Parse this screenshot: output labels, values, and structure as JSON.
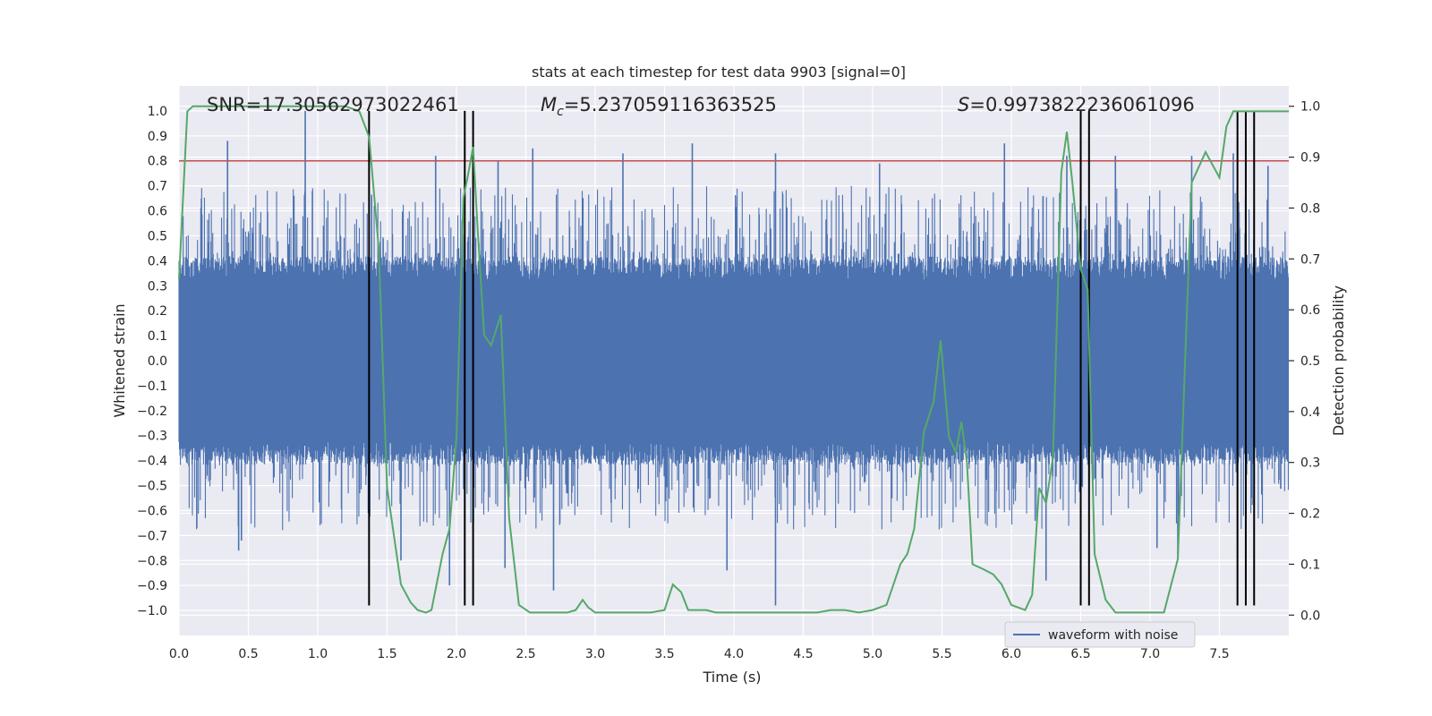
{
  "chart_data": {
    "type": "line",
    "title": "stats at each timestep for test data 9903 [signal=0]",
    "xlabel": "Time (s)",
    "ylabel": "Whitened strain",
    "ylabel_right": "Detection probability",
    "xlim": [
      0,
      8
    ],
    "ylim": [
      -1.1,
      1.1
    ],
    "ylim_right": [
      -0.04,
      1.04
    ],
    "x_ticks": [
      0.0,
      0.5,
      1.0,
      1.5,
      2.0,
      2.5,
      3.0,
      3.5,
      4.0,
      4.5,
      5.0,
      5.5,
      6.0,
      6.5,
      7.0,
      7.5
    ],
    "x_tick_labels": [
      "0.0",
      "0.5",
      "1.0",
      "1.5",
      "2.0",
      "2.5",
      "3.0",
      "3.5",
      "4.0",
      "4.5",
      "5.0",
      "5.5",
      "6.0",
      "6.5",
      "7.0",
      "7.5"
    ],
    "y_ticks": [
      1.0,
      0.9,
      0.8,
      0.7,
      0.6,
      0.5,
      0.4,
      0.3,
      0.2,
      0.1,
      0.0,
      -0.1,
      -0.2,
      -0.3,
      -0.4,
      -0.5,
      -0.6,
      -0.7,
      -0.8,
      -0.9,
      -1.0
    ],
    "y_tick_labels": [
      "1.0",
      "0.9",
      "0.8",
      "0.7",
      "0.6",
      "0.5",
      "0.4",
      "0.3",
      "0.2",
      "0.1",
      "0.0",
      "−0.1",
      "−0.2",
      "−0.3",
      "−0.4",
      "−0.5",
      "−0.6",
      "−0.7",
      "−0.8",
      "−0.9",
      "−1.0"
    ],
    "y_right_ticks": [
      1.0,
      0.9,
      0.8,
      0.7,
      0.6,
      0.5,
      0.4,
      0.3,
      0.2,
      0.1,
      0.0
    ],
    "y_right_tick_labels": [
      "1.0",
      "0.9",
      "0.8",
      "0.7",
      "0.6",
      "0.5",
      "0.4",
      "0.3",
      "0.2",
      "0.1",
      "0.0"
    ],
    "grid": true,
    "legend": {
      "entries": [
        "waveform with noise"
      ],
      "placement": "lower-right"
    },
    "annotations": {
      "snr": "SNR=17.30562973022461",
      "mc_symbol": "M",
      "mc_sub": "c",
      "mc_value": "=5.237059116363525",
      "s_symbol": "S",
      "s_value": "=0.9973822236061096"
    },
    "threshold": {
      "value": 0.8,
      "axis": "left",
      "color": "#c44e52"
    },
    "series": [
      {
        "name": "waveform with noise",
        "color": "#4c72b0",
        "axis": "left",
        "style": "dense-noise",
        "core_amplitude": 0.38,
        "spike_range": [
          -1.0,
          1.0
        ],
        "spikes_up": [
          [
            0.35,
            0.88
          ],
          [
            0.91,
            1.0
          ],
          [
            1.85,
            0.82
          ],
          [
            2.3,
            0.8
          ],
          [
            2.55,
            0.85
          ],
          [
            3.2,
            0.83
          ],
          [
            3.7,
            0.87
          ],
          [
            4.3,
            0.83
          ],
          [
            5.05,
            0.79
          ],
          [
            5.95,
            0.87
          ],
          [
            6.4,
            0.82
          ],
          [
            6.75,
            0.82
          ],
          [
            7.3,
            0.82
          ],
          [
            7.6,
            0.83
          ],
          [
            7.85,
            0.78
          ]
        ],
        "spikes_down": [
          [
            0.45,
            -0.72
          ],
          [
            0.43,
            -0.76
          ],
          [
            1.6,
            -0.8
          ],
          [
            1.95,
            -0.9
          ],
          [
            2.35,
            -0.83
          ],
          [
            2.7,
            -0.92
          ],
          [
            4.3,
            -0.98
          ],
          [
            3.95,
            -0.84
          ],
          [
            6.25,
            -0.88
          ],
          [
            6.5,
            -0.82
          ],
          [
            7.05,
            -0.75
          ],
          [
            7.2,
            -0.78
          ]
        ]
      },
      {
        "name": "",
        "color": "#55a868",
        "axis": "right",
        "x": [
          0.0,
          0.06,
          0.1,
          0.2,
          0.3,
          0.5,
          0.7,
          0.9,
          1.1,
          1.2,
          1.3,
          1.37,
          1.44,
          1.5,
          1.6,
          1.67,
          1.72,
          1.78,
          1.82,
          1.9,
          1.95,
          2.0,
          2.05,
          2.08,
          2.12,
          2.15,
          2.2,
          2.25,
          2.32,
          2.38,
          2.45,
          2.53,
          2.6,
          2.7,
          2.8,
          2.86,
          2.91,
          2.95,
          3.0,
          3.05,
          3.1,
          3.2,
          3.3,
          3.4,
          3.5,
          3.56,
          3.62,
          3.67,
          3.72,
          3.8,
          3.87,
          3.93,
          4.0,
          4.2,
          4.5,
          4.6,
          4.7,
          4.8,
          4.9,
          5.0,
          5.1,
          5.2,
          5.25,
          5.3,
          5.37,
          5.44,
          5.49,
          5.55,
          5.6,
          5.64,
          5.68,
          5.72,
          5.8,
          5.87,
          5.93,
          6.0,
          6.1,
          6.15,
          6.2,
          6.25,
          6.3,
          6.36,
          6.4,
          6.44,
          6.5,
          6.55,
          6.6,
          6.68,
          6.75,
          6.82,
          6.88,
          6.95,
          7.0,
          7.1,
          7.2,
          7.3,
          7.4,
          7.5,
          7.55,
          7.6,
          7.65,
          7.7,
          7.75,
          7.8,
          7.87,
          7.93,
          8.0
        ],
        "y": [
          0.66,
          0.99,
          1.0,
          1.0,
          1.0,
          1.0,
          1.0,
          1.0,
          1.0,
          1.0,
          0.99,
          0.94,
          0.72,
          0.25,
          0.06,
          0.025,
          0.01,
          0.005,
          0.01,
          0.12,
          0.17,
          0.35,
          0.82,
          0.86,
          0.92,
          0.77,
          0.55,
          0.53,
          0.59,
          0.19,
          0.02,
          0.005,
          0.005,
          0.005,
          0.005,
          0.01,
          0.03,
          0.015,
          0.005,
          0.005,
          0.005,
          0.005,
          0.005,
          0.005,
          0.01,
          0.06,
          0.045,
          0.01,
          0.01,
          0.01,
          0.005,
          0.005,
          0.005,
          0.005,
          0.005,
          0.005,
          0.01,
          0.01,
          0.005,
          0.01,
          0.02,
          0.1,
          0.12,
          0.17,
          0.36,
          0.42,
          0.54,
          0.35,
          0.32,
          0.38,
          0.3,
          0.1,
          0.09,
          0.08,
          0.06,
          0.02,
          0.01,
          0.04,
          0.25,
          0.22,
          0.31,
          0.87,
          0.95,
          0.85,
          0.68,
          0.64,
          0.12,
          0.03,
          0.005,
          0.005,
          0.005,
          0.005,
          0.005,
          0.005,
          0.11,
          0.85,
          0.91,
          0.86,
          0.96,
          0.99,
          0.99,
          0.99,
          0.99,
          0.99,
          0.99,
          0.99,
          0.99
        ]
      }
    ],
    "markers": {
      "color": "#000000",
      "x": [
        1.37,
        2.06,
        2.12,
        6.5,
        6.56,
        7.63,
        7.69,
        7.75
      ],
      "y_range": [
        -0.98,
        1.0
      ]
    }
  }
}
